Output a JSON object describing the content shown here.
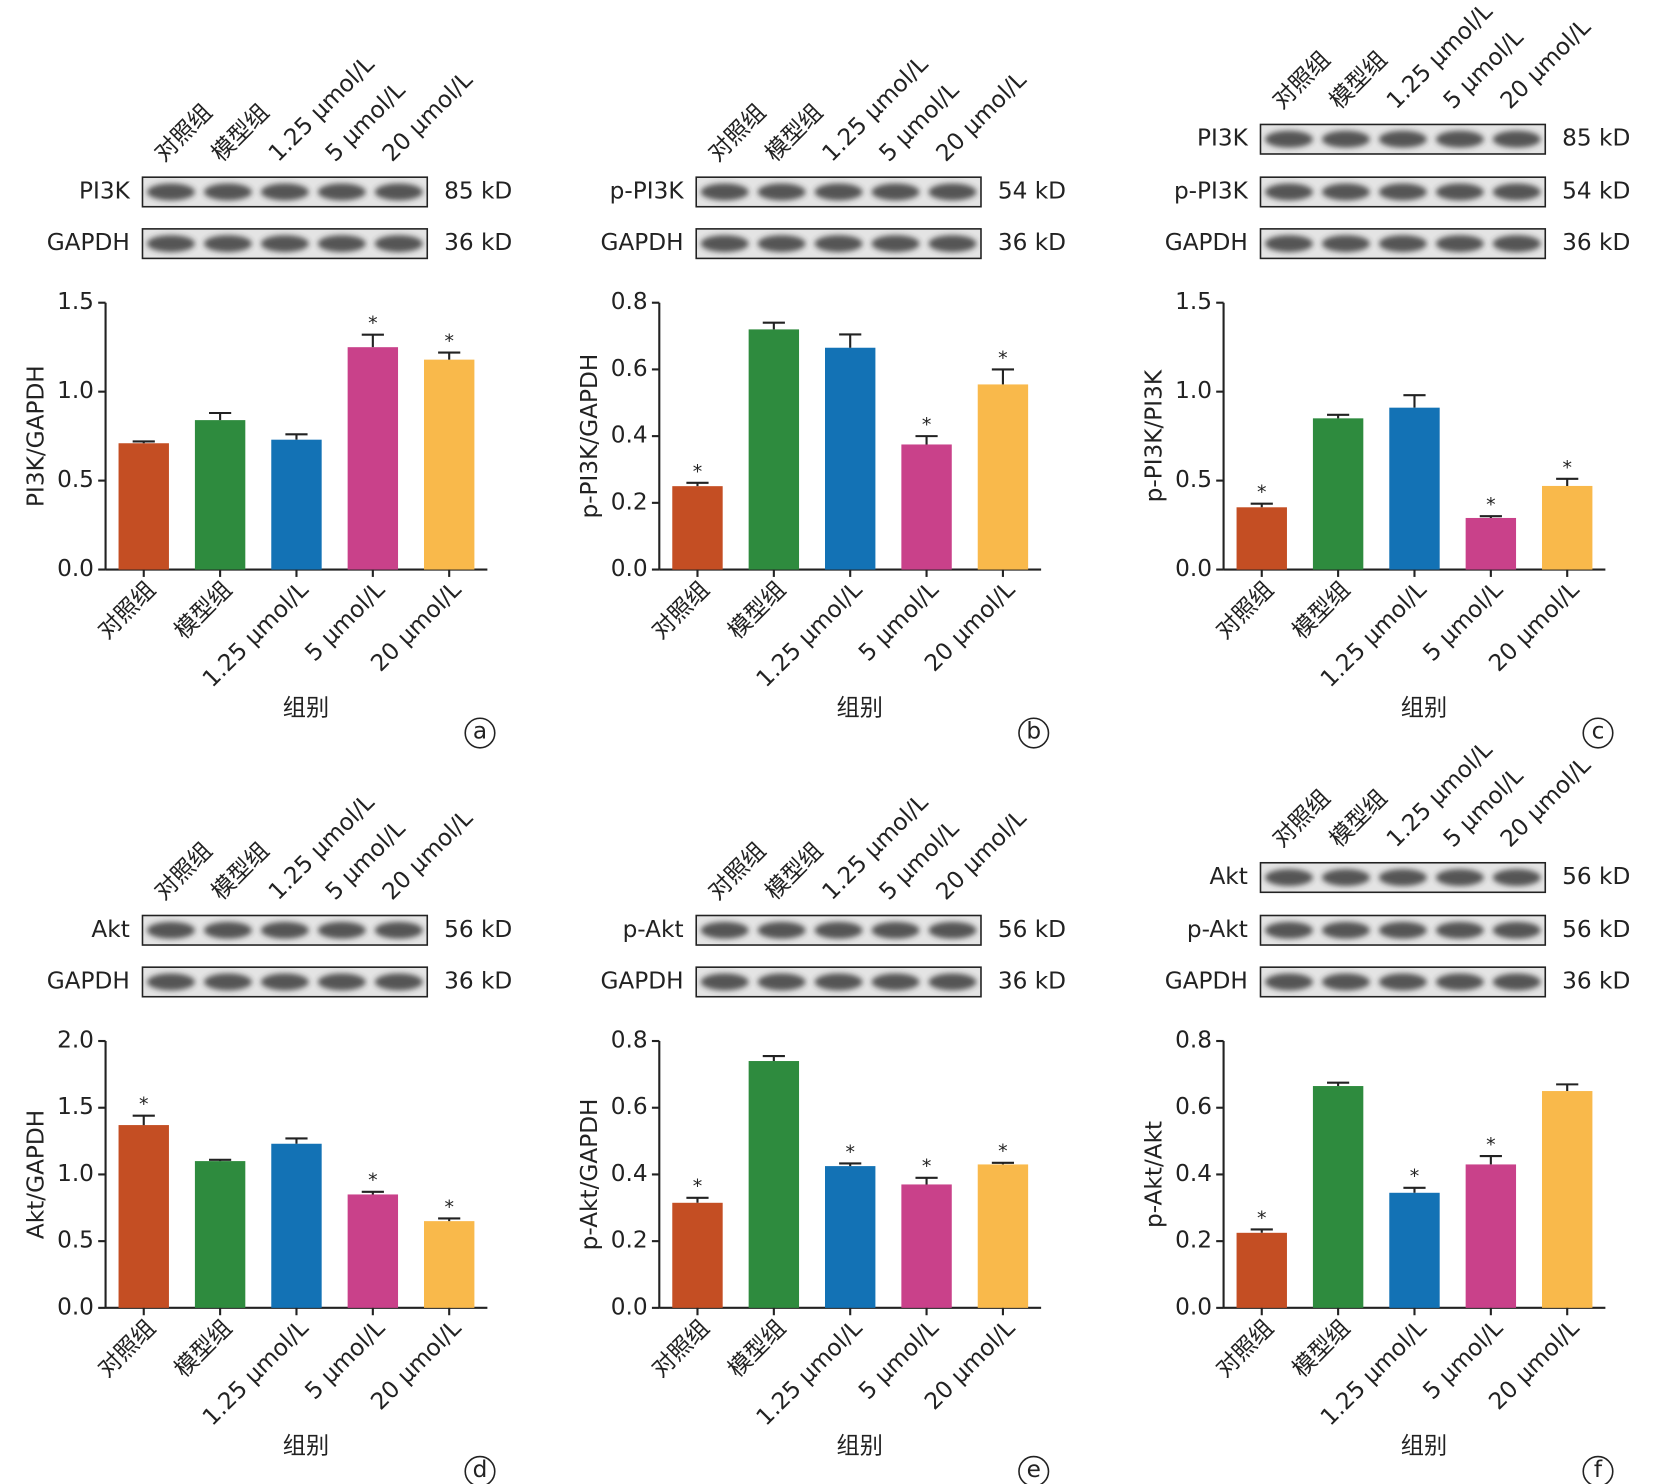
{
  "chart_data": [
    {
      "type": "bar",
      "panel": "a",
      "ylabel": "PI3K/GAPDH",
      "xlabel": "组别",
      "categories": [
        "对照组",
        "模型组",
        "1.25 μmol/L",
        "5 μmol/L",
        "20 μmol/L"
      ],
      "colors": [
        "#c44e23",
        "#2e8b3e",
        "#1372b5",
        "#c9418a",
        "#f9b94b"
      ],
      "blots": [
        {
          "protein": "PI3K",
          "size": "85 kD"
        },
        {
          "protein": "GAPDH",
          "size": "36 kD"
        }
      ],
      "values": [
        0.71,
        0.84,
        0.73,
        1.25,
        1.18
      ],
      "errors": [
        0.01,
        0.04,
        0.03,
        0.07,
        0.04
      ],
      "significance": [
        null,
        null,
        null,
        "*",
        "*"
      ],
      "ylim": [
        0,
        1.5
      ],
      "yticks": [
        {
          "value": 0,
          "label": "0.0"
        },
        0.5,
        {
          "value": 1,
          "label": "1.0"
        },
        1.5
      ]
    },
    {
      "type": "bar",
      "panel": "b",
      "ylabel": "p-PI3K/GAPDH",
      "xlabel": "组别",
      "categories": [
        "对照组",
        "模型组",
        "1.25 μmol/L",
        "5 μmol/L",
        "20 μmol/L"
      ],
      "colors": [
        "#c44e23",
        "#2e8b3e",
        "#1372b5",
        "#c9418a",
        "#f9b94b"
      ],
      "blots": [
        {
          "protein": "p-PI3K",
          "size": "54 kD"
        },
        {
          "protein": "GAPDH",
          "size": "36 kD"
        }
      ],
      "values": [
        0.25,
        0.72,
        0.665,
        0.375,
        0.555
      ],
      "errors": [
        0.01,
        0.02,
        0.04,
        0.025,
        0.045
      ],
      "significance": [
        "*",
        null,
        null,
        "*",
        "*"
      ],
      "ylim": [
        0,
        0.8
      ],
      "yticks": [
        {
          "value": 0,
          "label": "0.0"
        },
        0.2,
        0.4,
        0.6,
        0.8
      ]
    },
    {
      "type": "bar",
      "panel": "c",
      "ylabel": "p-PI3K/PI3K",
      "xlabel": "组别",
      "categories": [
        "对照组",
        "模型组",
        "1.25 μmol/L",
        "5 μmol/L",
        "20 μmol/L"
      ],
      "colors": [
        "#c44e23",
        "#2e8b3e",
        "#1372b5",
        "#c9418a",
        "#f9b94b"
      ],
      "blots": [
        {
          "protein": "PI3K",
          "size": "85 kD"
        },
        {
          "protein": "p-PI3K",
          "size": "54 kD"
        },
        {
          "protein": "GAPDH",
          "size": "36 kD"
        }
      ],
      "values": [
        0.35,
        0.85,
        0.91,
        0.29,
        0.47
      ],
      "errors": [
        0.02,
        0.02,
        0.07,
        0.01,
        0.04
      ],
      "significance": [
        "*",
        null,
        null,
        "*",
        "*"
      ],
      "ylim": [
        0,
        1.5
      ],
      "yticks": [
        {
          "value": 0,
          "label": "0.0"
        },
        0.5,
        {
          "value": 1,
          "label": "1.0"
        },
        1.5
      ]
    },
    {
      "type": "bar",
      "panel": "d",
      "ylabel": "Akt/GAPDH",
      "xlabel": "组别",
      "categories": [
        "对照组",
        "模型组",
        "1.25 μmol/L",
        "5 μmol/L",
        "20 μmol/L"
      ],
      "colors": [
        "#c44e23",
        "#2e8b3e",
        "#1372b5",
        "#c9418a",
        "#f9b94b"
      ],
      "blots": [
        {
          "protein": "Akt",
          "size": "56 kD"
        },
        {
          "protein": "GAPDH",
          "size": "36 kD"
        }
      ],
      "values": [
        1.37,
        1.1,
        1.23,
        0.85,
        0.65
      ],
      "errors": [
        0.07,
        0.01,
        0.04,
        0.02,
        0.02
      ],
      "significance": [
        "*",
        null,
        null,
        "*",
        "*"
      ],
      "ylim": [
        0,
        2
      ],
      "yticks": [
        {
          "value": 0,
          "label": "0.0"
        },
        0.5,
        {
          "value": 1,
          "label": "1.0"
        },
        1.5,
        {
          "value": 2,
          "label": "2.0"
        }
      ]
    },
    {
      "type": "bar",
      "panel": "e",
      "ylabel": "p-Akt/GAPDH",
      "xlabel": "组别",
      "categories": [
        "对照组",
        "模型组",
        "1.25 μmol/L",
        "5 μmol/L",
        "20 μmol/L"
      ],
      "colors": [
        "#c44e23",
        "#2e8b3e",
        "#1372b5",
        "#c9418a",
        "#f9b94b"
      ],
      "blots": [
        {
          "protein": "p-Akt",
          "size": "56 kD"
        },
        {
          "protein": "GAPDH",
          "size": "36 kD"
        }
      ],
      "values": [
        0.315,
        0.74,
        0.425,
        0.37,
        0.43
      ],
      "errors": [
        0.015,
        0.015,
        0.008,
        0.02,
        0.005
      ],
      "significance": [
        "*",
        null,
        "*",
        "*",
        "*"
      ],
      "ylim": [
        0,
        0.8
      ],
      "yticks": [
        {
          "value": 0,
          "label": "0.0"
        },
        0.2,
        0.4,
        0.6,
        0.8
      ]
    },
    {
      "type": "bar",
      "panel": "f",
      "ylabel": "p-Akt/Akt",
      "xlabel": "组别",
      "categories": [
        "对照组",
        "模型组",
        "1.25 μmol/L",
        "5 μmol/L",
        "20 μmol/L"
      ],
      "colors": [
        "#c44e23",
        "#2e8b3e",
        "#1372b5",
        "#c9418a",
        "#f9b94b"
      ],
      "blots": [
        {
          "protein": "Akt",
          "size": "56 kD"
        },
        {
          "protein": "p-Akt",
          "size": "56 kD"
        },
        {
          "protein": "GAPDH",
          "size": "36 kD"
        }
      ],
      "values": [
        0.225,
        0.665,
        0.345,
        0.43,
        0.65
      ],
      "errors": [
        0.01,
        0.01,
        0.015,
        0.025,
        0.02
      ],
      "significance": [
        "*",
        null,
        "*",
        "*",
        null
      ],
      "ylim": [
        0,
        0.8
      ],
      "yticks": [
        {
          "value": 0,
          "label": "0.0"
        },
        0.2,
        0.4,
        0.6,
        0.8
      ]
    }
  ]
}
